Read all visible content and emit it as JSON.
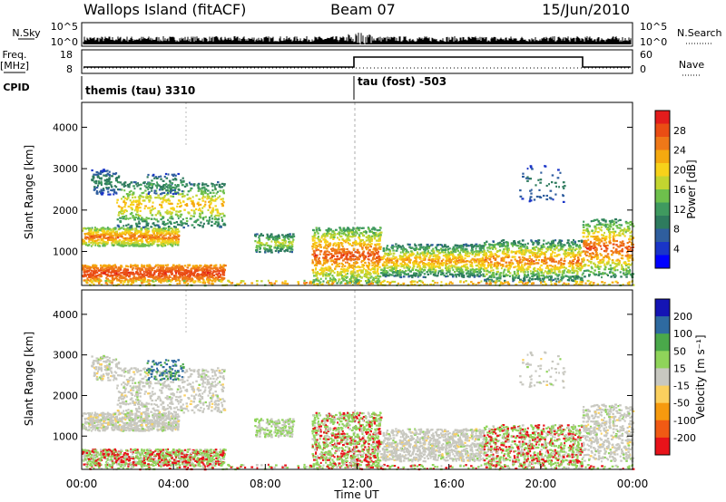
{
  "header": {
    "station": "Wallops Island (fitACF)",
    "beam": "Beam 07",
    "date": "15/Jun/2010"
  },
  "summary_panel": {
    "nsky_label": "N.Sky",
    "nsky_ticks": [
      "10^5",
      "10^0"
    ],
    "nsearch_label": "N.Search",
    "freq_label": "Freq.",
    "freq_unit": "[MHz]",
    "freq_ticks": [
      "18",
      "8"
    ],
    "nave_label": "Nave",
    "nave_ticks": [
      "60",
      "0"
    ],
    "cpid_label": "CPID",
    "cpid_entries": [
      {
        "name": "themis (tau) 3310",
        "start_hour": 0
      },
      {
        "name": "tau (fost) -503",
        "start_hour": 12
      }
    ]
  },
  "chart_data": [
    {
      "type": "heatmap",
      "name": "power",
      "xlabel": "Time UT",
      "ylabel": "Slant Range [km]",
      "xlim": [
        0,
        24
      ],
      "ylim": [
        180,
        4600
      ],
      "yticks": [
        "1000",
        "2000",
        "3000",
        "4000"
      ],
      "colorbar": {
        "label": "Power [dB]",
        "ticks": [
          "28",
          "24",
          "20",
          "16",
          "12",
          "8",
          "4"
        ],
        "range": [
          0,
          32
        ],
        "colors": [
          "#0000ff",
          "#1a35c8",
          "#2f5e9e",
          "#2e7b5e",
          "#3f9a5f",
          "#6ec04c",
          "#c3d530",
          "#f7d21a",
          "#f5a90f",
          "#ef7818",
          "#ea4d14",
          "#e31c1c"
        ]
      }
    },
    {
      "type": "heatmap",
      "name": "velocity",
      "xlabel": "Time UT",
      "ylabel": "Slant Range [km]",
      "xlim": [
        0,
        24
      ],
      "ylim": [
        180,
        4600
      ],
      "xticks": [
        "00:00",
        "04:00",
        "08:00",
        "12:00",
        "16:00",
        "20:00",
        "00:00"
      ],
      "yticks": [
        "1000",
        "2000",
        "3000",
        "4000"
      ],
      "colorbar": {
        "label": "Velocity [m s⁻¹]",
        "ticks": [
          "200",
          "100",
          "50",
          "15",
          "-15",
          "-50",
          "-100",
          "-200"
        ],
        "colors": [
          "#e8131a",
          "#f05a14",
          "#f69a0e",
          "#fbd05e",
          "#c8c8c0",
          "#8fd45a",
          "#4aa84a",
          "#2e6aa0",
          "#1414b4"
        ]
      }
    }
  ]
}
